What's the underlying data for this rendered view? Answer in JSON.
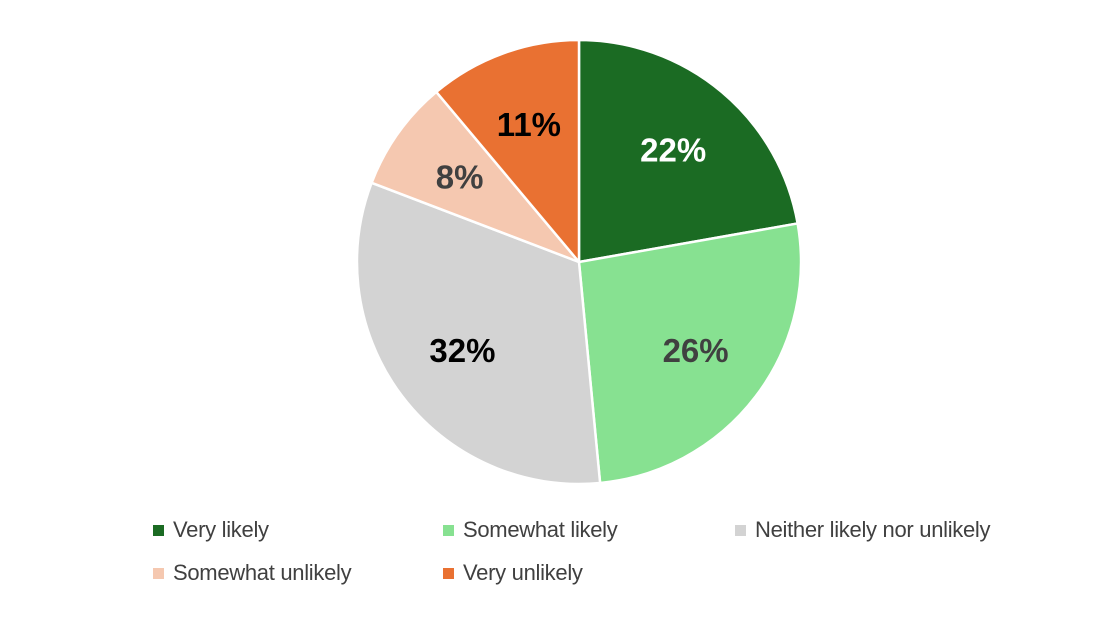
{
  "chart_data": {
    "type": "pie",
    "title": "",
    "start_angle_deg": 0,
    "direction": "clockwise",
    "legend_position": "bottom",
    "slices": [
      {
        "name": "Very likely",
        "value": 22,
        "label": "22%",
        "color": "#1b6b23",
        "label_color": "#ffffff"
      },
      {
        "name": "Somewhat likely",
        "value": 26,
        "label": "26%",
        "color": "#87e191",
        "label_color": "#404040"
      },
      {
        "name": "Neither likely nor unlikely",
        "value": 32,
        "label": "32%",
        "color": "#d3d3d3",
        "label_color": "#000000"
      },
      {
        "name": "Somewhat unlikely",
        "value": 8,
        "label": "8%",
        "color": "#f5c8b0",
        "label_color": "#404040"
      },
      {
        "name": "Very unlikely",
        "value": 11,
        "label": "11%",
        "color": "#e97132",
        "label_color": "#000000"
      }
    ]
  }
}
